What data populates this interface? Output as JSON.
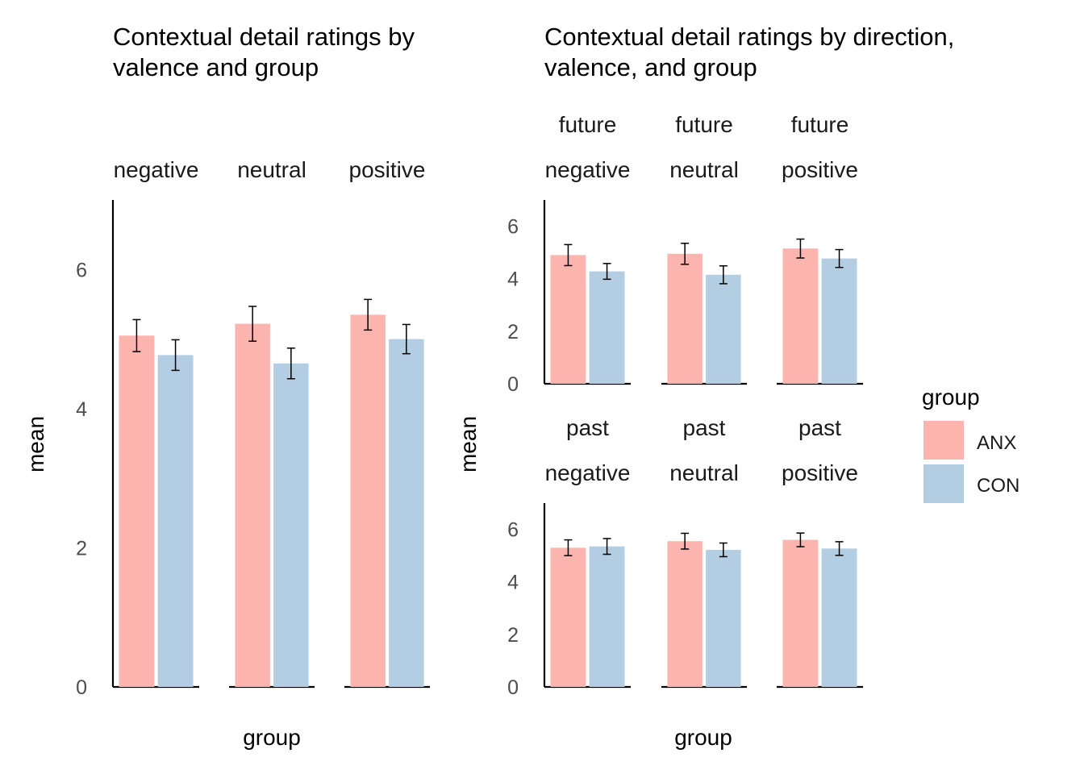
{
  "colors": {
    "ANX": "#FBB4AE",
    "CON": "#B3CDE3",
    "axis": "#000000",
    "errorbar": "#000000"
  },
  "legend": {
    "title": "group",
    "items": [
      "ANX",
      "CON"
    ],
    "placement": "right"
  },
  "chart_data": [
    {
      "type": "bar",
      "title_lines": [
        "Contextual detail ratings by",
        "valence and group"
      ],
      "xlabel": "group",
      "ylabel": "mean",
      "ylim": [
        0,
        7
      ],
      "yticks": [
        "0",
        "2",
        "4",
        "6"
      ],
      "grid": false,
      "groups": [
        "ANX",
        "CON"
      ],
      "panels": [
        {
          "strip": [
            "negative"
          ],
          "values": [
            5.05,
            4.77
          ],
          "se": [
            0.23,
            0.22
          ]
        },
        {
          "strip": [
            "neutral"
          ],
          "values": [
            5.22,
            4.65
          ],
          "se": [
            0.25,
            0.22
          ]
        },
        {
          "strip": [
            "positive"
          ],
          "values": [
            5.35,
            5.0
          ],
          "se": [
            0.22,
            0.21
          ]
        }
      ]
    },
    {
      "type": "bar",
      "title_lines": [
        "Contextual detail ratings by direction,",
        "valence, and group"
      ],
      "xlabel": "group",
      "ylabel": "mean",
      "ylim": [
        0,
        7
      ],
      "yticks": [
        "0",
        "2",
        "4",
        "6"
      ],
      "grid": false,
      "groups": [
        "ANX",
        "CON"
      ],
      "panels": [
        {
          "strip": [
            "future",
            "negative"
          ],
          "values": [
            4.9,
            4.28
          ],
          "se": [
            0.4,
            0.3
          ]
        },
        {
          "strip": [
            "future",
            "neutral"
          ],
          "values": [
            4.95,
            4.15
          ],
          "se": [
            0.4,
            0.34
          ]
        },
        {
          "strip": [
            "future",
            "positive"
          ],
          "values": [
            5.15,
            4.77
          ],
          "se": [
            0.36,
            0.34
          ]
        },
        {
          "strip": [
            "past",
            "negative"
          ],
          "values": [
            5.3,
            5.35
          ],
          "se": [
            0.3,
            0.3
          ]
        },
        {
          "strip": [
            "past",
            "neutral"
          ],
          "values": [
            5.55,
            5.22
          ],
          "se": [
            0.3,
            0.26
          ]
        },
        {
          "strip": [
            "past",
            "positive"
          ],
          "values": [
            5.6,
            5.27
          ],
          "se": [
            0.26,
            0.26
          ]
        }
      ]
    }
  ]
}
